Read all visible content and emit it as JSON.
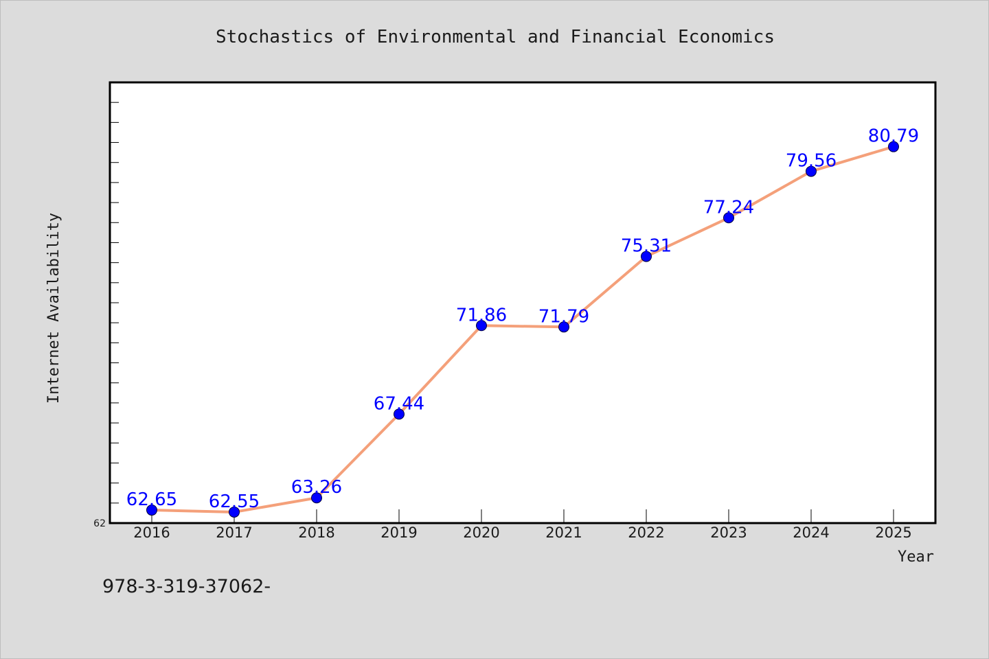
{
  "chart_data": {
    "type": "line",
    "title": "Stochastics of Environmental and Financial Economics",
    "xlabel": "Year",
    "ylabel": "Internet Availability",
    "x": [
      "2016",
      "2017",
      "2018",
      "2019",
      "2020",
      "2021",
      "2022",
      "2023",
      "2024",
      "2025"
    ],
    "series": [
      {
        "values": [
          62.65,
          62.55,
          63.26,
          67.44,
          71.86,
          71.79,
          75.31,
          77.24,
          79.56,
          80.79
        ],
        "data_labels": [
          "62.65",
          "62.55",
          "63.26",
          "67.44",
          "71.86",
          "71.79",
          "75.31",
          "77.24",
          "79.56",
          "80.79"
        ],
        "line_color": "#f4a07a",
        "marker_color": "#0000ff"
      }
    ],
    "ylim": [
      62,
      84
    ],
    "y_tick_labels": [
      "62"
    ],
    "grid": false,
    "legend": "none"
  },
  "footnote": "978-3-319-37062-"
}
